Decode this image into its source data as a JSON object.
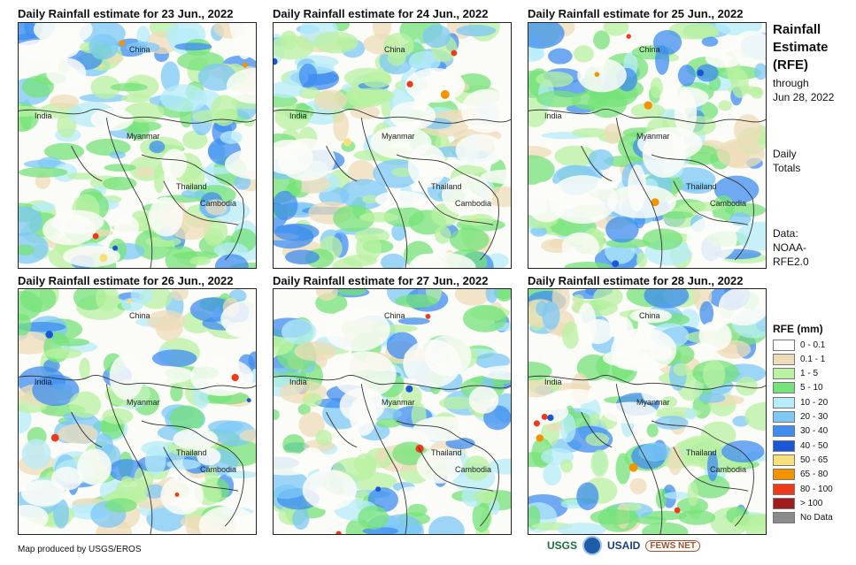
{
  "panels": [
    {
      "title": "Daily Rainfall estimate for 23 Jun., 2022",
      "labels": [
        "China",
        "India",
        "Myanmar",
        "Thailand",
        "Cambodia"
      ]
    },
    {
      "title": "Daily Rainfall estimate for 24 Jun., 2022",
      "labels": [
        "China",
        "India",
        "Myanmar",
        "Thailand",
        "Cambodia"
      ]
    },
    {
      "title": "Daily Rainfall estimate for 25 Jun., 2022",
      "labels": [
        "China",
        "India",
        "Myanmar",
        "Thailand",
        "Cambodia"
      ]
    },
    {
      "title": "Daily Rainfall estimate for 26 Jun., 2022",
      "labels": [
        "China",
        "India",
        "Myanmar",
        "Thailand",
        "Cambodia"
      ]
    },
    {
      "title": "Daily Rainfall estimate for 27 Jun., 2022",
      "labels": [
        "China",
        "India",
        "Myanmar",
        "Thailand",
        "Cambodia"
      ]
    },
    {
      "title": "Daily Rainfall estimate for 28 Jun., 2022",
      "labels": [
        "China",
        "India",
        "Myanmar",
        "Thailand",
        "Cambodia"
      ]
    }
  ],
  "sidebar": {
    "title": [
      "Rainfall",
      "Estimate",
      "(RFE)"
    ],
    "through": [
      "through",
      "Jun 28, 2022"
    ],
    "totals": [
      "Daily",
      "Totals"
    ],
    "data": [
      "Data:",
      "NOAA-",
      "RFE2.0"
    ]
  },
  "legend": {
    "title": "RFE (mm)",
    "items": [
      {
        "label": "0 - 0.1",
        "color": "#ffffff"
      },
      {
        "label": "0.1 - 1",
        "color": "#eedcb8"
      },
      {
        "label": "1 - 5",
        "color": "#b9f2a2"
      },
      {
        "label": "5 - 10",
        "color": "#76e37a"
      },
      {
        "label": "10 - 20",
        "color": "#b7ecfa"
      },
      {
        "label": "20 - 30",
        "color": "#7ec8f5"
      },
      {
        "label": "30 - 40",
        "color": "#3f8df0"
      },
      {
        "label": "40 - 50",
        "color": "#1a56d6"
      },
      {
        "label": "50 - 65",
        "color": "#f8e07a"
      },
      {
        "label": "65 - 80",
        "color": "#f59200"
      },
      {
        "label": "80 - 100",
        "color": "#ee3a1a"
      },
      {
        "label": "> 100",
        "color": "#a11d1d"
      },
      {
        "label": "No Data",
        "color": "#8a8a8a"
      }
    ]
  },
  "credit": "Map produced by USGS/EROS",
  "logos": [
    "USGS",
    "NOAA",
    "USAID",
    "FEWS NET"
  ]
}
